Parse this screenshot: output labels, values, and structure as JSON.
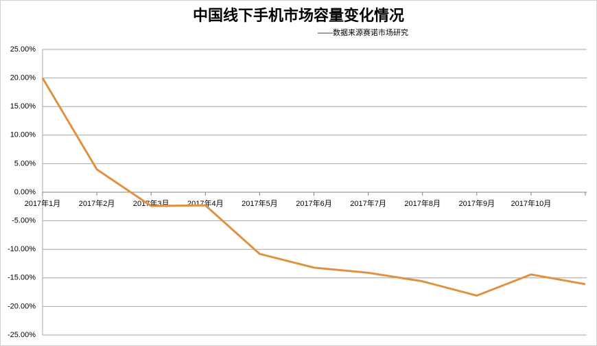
{
  "chart_data": {
    "type": "line",
    "title": "中国线下手机市场容量变化情况",
    "subtitle": "——数据来源赛诺市场研究",
    "categories": [
      "2017年1月",
      "2017年2月",
      "2017年3月",
      "2017年4月",
      "2017年5月",
      "2017年6月",
      "2017年7月",
      "2017年8月",
      "2017年9月",
      "2017年10月",
      null
    ],
    "values": [
      20.0,
      4.0,
      -2.4,
      -2.3,
      -10.8,
      -13.2,
      -14.1,
      -15.6,
      -18.1,
      -14.4,
      -16.1
    ],
    "color": "#e0913f",
    "ylim": [
      -25,
      25
    ],
    "yticks": [
      {
        "value": -25,
        "label": "-25.00%"
      },
      {
        "value": -20,
        "label": "-20.00%"
      },
      {
        "value": -15,
        "label": "-15.00%"
      },
      {
        "value": -10,
        "label": "-10.00%"
      },
      {
        "value": -5,
        "label": "-5.00%"
      },
      {
        "value": 0,
        "label": "0.00%"
      },
      {
        "value": 5,
        "label": "5.00%"
      },
      {
        "value": 10,
        "label": "10.00%"
      },
      {
        "value": 15,
        "label": "15.00%"
      },
      {
        "value": 20,
        "label": "20.00%"
      },
      {
        "value": 25,
        "label": "25.00%"
      }
    ],
    "grid": true
  }
}
